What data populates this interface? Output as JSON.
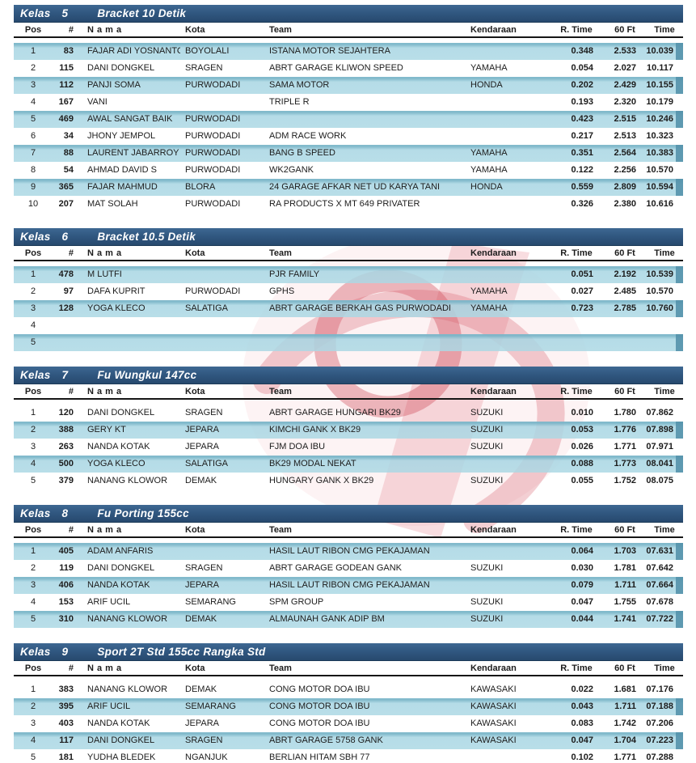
{
  "colors": {
    "section_bar": "#315881",
    "row_highlight": "#a9d6e2",
    "row_highlight_edge": "#7bb6c9",
    "header_rule": "#161616",
    "watermark_red": "#cc3c50"
  },
  "watermark": {
    "name": "red-logo-watermark"
  },
  "columns": [
    {
      "key": "pos",
      "label": "Pos"
    },
    {
      "key": "num",
      "label": "#"
    },
    {
      "key": "nama",
      "label": "N a m a"
    },
    {
      "key": "kota",
      "label": "Kota"
    },
    {
      "key": "team",
      "label": "Team"
    },
    {
      "key": "kendaraan",
      "label": "Kendaraan"
    },
    {
      "key": "rtime",
      "label": "R. Time"
    },
    {
      "key": "sixty",
      "label": "60 Ft"
    },
    {
      "key": "time",
      "label": "Time"
    }
  ],
  "sections": [
    {
      "kelas_label": "Kelas",
      "kelas_num": "5",
      "title": "Bracket 10 Detik",
      "rows": [
        {
          "pos": "1",
          "num": "83",
          "nama": "FAJAR ADI YOSNANTO",
          "kota": "BOYOLALI",
          "team": "ISTANA MOTOR SEJAHTERA",
          "kendaraan": "",
          "rtime": "0.348",
          "sixty": "2.533",
          "time": "10.039",
          "hl": true
        },
        {
          "pos": "2",
          "num": "115",
          "nama": "DANI DONGKEL",
          "kota": "SRAGEN",
          "team": "ABRT GARAGE KLIWON SPEED",
          "kendaraan": "YAMAHA",
          "rtime": "0.054",
          "sixty": "2.027",
          "time": "10.117",
          "hl": false
        },
        {
          "pos": "3",
          "num": "112",
          "nama": "PANJI SOMA",
          "kota": "PURWODADI",
          "team": "SAMA MOTOR",
          "kendaraan": "HONDA",
          "rtime": "0.202",
          "sixty": "2.429",
          "time": "10.155",
          "hl": true
        },
        {
          "pos": "4",
          "num": "167",
          "nama": "VANI",
          "kota": "",
          "team": "TRIPLE R",
          "kendaraan": "",
          "rtime": "0.193",
          "sixty": "2.320",
          "time": "10.179",
          "hl": false
        },
        {
          "pos": "5",
          "num": "469",
          "nama": "AWAL SANGAT BAIK",
          "kota": "PURWODADI",
          "team": "",
          "kendaraan": "",
          "rtime": "0.423",
          "sixty": "2.515",
          "time": "10.246",
          "hl": true
        },
        {
          "pos": "6",
          "num": "34",
          "nama": "JHONY JEMPOL",
          "kota": "PURWODADI",
          "team": "ADM RACE WORK",
          "kendaraan": "",
          "rtime": "0.217",
          "sixty": "2.513",
          "time": "10.323",
          "hl": false
        },
        {
          "pos": "7",
          "num": "88",
          "nama": "LAURENT JABARROY",
          "kota": "PURWODADI",
          "team": "BANG B SPEED",
          "kendaraan": "YAMAHA",
          "rtime": "0.351",
          "sixty": "2.564",
          "time": "10.383",
          "hl": true
        },
        {
          "pos": "8",
          "num": "54",
          "nama": "AHMAD DAVID S",
          "kota": "PURWODADI",
          "team": "WK2GANK",
          "kendaraan": "YAMAHA",
          "rtime": "0.122",
          "sixty": "2.256",
          "time": "10.570",
          "hl": false
        },
        {
          "pos": "9",
          "num": "365",
          "nama": "FAJAR MAHMUD",
          "kota": "BLORA",
          "team": "24 GARAGE AFKAR NET UD KARYA TANI",
          "kendaraan": "HONDA",
          "rtime": "0.559",
          "sixty": "2.809",
          "time": "10.594",
          "hl": true
        },
        {
          "pos": "10",
          "num": "207",
          "nama": "MAT SOLAH",
          "kota": "PURWODADI",
          "team": "RA PRODUCTS X MT 649 PRIVATER",
          "kendaraan": "",
          "rtime": "0.326",
          "sixty": "2.380",
          "time": "10.616",
          "hl": false
        }
      ]
    },
    {
      "kelas_label": "Kelas",
      "kelas_num": "6",
      "title": "Bracket 10.5 Detik",
      "rows": [
        {
          "pos": "1",
          "num": "478",
          "nama": "M LUTFI",
          "kota": "",
          "team": "PJR FAMILY",
          "kendaraan": "",
          "rtime": "0.051",
          "sixty": "2.192",
          "time": "10.539",
          "hl": true
        },
        {
          "pos": "2",
          "num": "97",
          "nama": "DAFA KUPRIT",
          "kota": "PURWODADI",
          "team": "GPHS",
          "kendaraan": "YAMAHA",
          "rtime": "0.027",
          "sixty": "2.485",
          "time": "10.570",
          "hl": false
        },
        {
          "pos": "3",
          "num": "128",
          "nama": "YOGA KLECO",
          "kota": "SALATIGA",
          "team": "ABRT GARAGE BERKAH GAS PURWODADI",
          "kendaraan": "YAMAHA",
          "rtime": "0.723",
          "sixty": "2.785",
          "time": "10.760",
          "hl": true
        },
        {
          "pos": "4",
          "num": "",
          "nama": "",
          "kota": "",
          "team": "",
          "kendaraan": "",
          "rtime": "",
          "sixty": "",
          "time": "",
          "hl": false
        },
        {
          "pos": "5",
          "num": "",
          "nama": "",
          "kota": "",
          "team": "",
          "kendaraan": "",
          "rtime": "",
          "sixty": "",
          "time": "",
          "hl": true
        }
      ]
    },
    {
      "kelas_label": "Kelas",
      "kelas_num": "7",
      "title": "Fu Wungkul 147cc",
      "rows": [
        {
          "pos": "1",
          "num": "120",
          "nama": "DANI DONGKEL",
          "kota": "SRAGEN",
          "team": "ABRT GARAGE HUNGARI BK29",
          "kendaraan": "SUZUKI",
          "rtime": "0.010",
          "sixty": "1.780",
          "time": "07.862",
          "hl": false
        },
        {
          "pos": "2",
          "num": "388",
          "nama": "GERY KT",
          "kota": "JEPARA",
          "team": "KIMCHI GANK X BK29",
          "kendaraan": "SUZUKI",
          "rtime": "0.053",
          "sixty": "1.776",
          "time": "07.898",
          "hl": true
        },
        {
          "pos": "3",
          "num": "263",
          "nama": "NANDA KOTAK",
          "kota": "JEPARA",
          "team": "FJM DOA IBU",
          "kendaraan": "SUZUKI",
          "rtime": "0.026",
          "sixty": "1.771",
          "time": "07.971",
          "hl": false
        },
        {
          "pos": "4",
          "num": "500",
          "nama": "YOGA KLECO",
          "kota": "SALATIGA",
          "team": "BK29 MODAL NEKAT",
          "kendaraan": "",
          "rtime": "0.088",
          "sixty": "1.773",
          "time": "08.041",
          "hl": true
        },
        {
          "pos": "5",
          "num": "379",
          "nama": "NANANG KLOWOR",
          "kota": "DEMAK",
          "team": "HUNGARY GANK X BK29",
          "kendaraan": "SUZUKI",
          "rtime": "0.055",
          "sixty": "1.752",
          "time": "08.075",
          "hl": false
        }
      ]
    },
    {
      "kelas_label": "Kelas",
      "kelas_num": "8",
      "title": "Fu Porting 155cc",
      "rows": [
        {
          "pos": "1",
          "num": "405",
          "nama": "ADAM ANFARIS",
          "kota": "",
          "team": "HASIL LAUT RIBON CMG PEKAJAMAN",
          "kendaraan": "",
          "rtime": "0.064",
          "sixty": "1.703",
          "time": "07.631",
          "hl": true
        },
        {
          "pos": "2",
          "num": "119",
          "nama": "DANI DONGKEL",
          "kota": "SRAGEN",
          "team": "ABRT GARAGE GODEAN GANK",
          "kendaraan": "SUZUKI",
          "rtime": "0.030",
          "sixty": "1.781",
          "time": "07.642",
          "hl": false
        },
        {
          "pos": "3",
          "num": "406",
          "nama": "NANDA KOTAK",
          "kota": "JEPARA",
          "team": "HASIL LAUT RIBON CMG PEKAJAMAN",
          "kendaraan": "",
          "rtime": "0.079",
          "sixty": "1.711",
          "time": "07.664",
          "hl": true
        },
        {
          "pos": "4",
          "num": "153",
          "nama": "ARIF UCIL",
          "kota": "SEMARANG",
          "team": "SPM GROUP",
          "kendaraan": "SUZUKI",
          "rtime": "0.047",
          "sixty": "1.755",
          "time": "07.678",
          "hl": false
        },
        {
          "pos": "5",
          "num": "310",
          "nama": "NANANG KLOWOR",
          "kota": "DEMAK",
          "team": "ALMAUNAH GANK ADIP BM",
          "kendaraan": "SUZUKI",
          "rtime": "0.044",
          "sixty": "1.741",
          "time": "07.722",
          "hl": true
        }
      ]
    },
    {
      "kelas_label": "Kelas",
      "kelas_num": "9",
      "title": "Sport 2T Std 155cc Rangka Std",
      "rows": [
        {
          "pos": "1",
          "num": "383",
          "nama": "NANANG KLOWOR",
          "kota": "DEMAK",
          "team": "CONG MOTOR DOA IBU",
          "kendaraan": "KAWASAKI",
          "rtime": "0.022",
          "sixty": "1.681",
          "time": "07.176",
          "hl": false
        },
        {
          "pos": "2",
          "num": "395",
          "nama": "ARIF UCIL",
          "kota": "SEMARANG",
          "team": "CONG MOTOR DOA IBU",
          "kendaraan": "KAWASAKI",
          "rtime": "0.043",
          "sixty": "1.711",
          "time": "07.188",
          "hl": true
        },
        {
          "pos": "3",
          "num": "403",
          "nama": "NANDA KOTAK",
          "kota": "JEPARA",
          "team": "CONG MOTOR DOA IBU",
          "kendaraan": "KAWASAKI",
          "rtime": "0.083",
          "sixty": "1.742",
          "time": "07.206",
          "hl": false
        },
        {
          "pos": "4",
          "num": "117",
          "nama": "DANI DONGKEL",
          "kota": "SRAGEN",
          "team": "ABRT GARAGE 5758 GANK",
          "kendaraan": "KAWASAKI",
          "rtime": "0.047",
          "sixty": "1.704",
          "time": "07.223",
          "hl": true
        },
        {
          "pos": "5",
          "num": "181",
          "nama": "YUDHA BLEDEK",
          "kota": "NGANJUK",
          "team": "BERLIAN HITAM SBH 77",
          "kendaraan": "",
          "rtime": "0.102",
          "sixty": "1.771",
          "time": "07.288",
          "hl": false
        }
      ]
    }
  ]
}
